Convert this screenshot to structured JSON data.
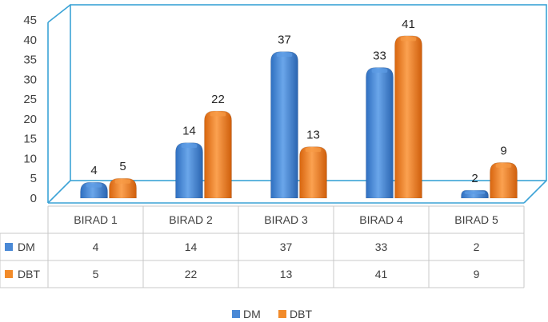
{
  "chart_data": {
    "type": "bar",
    "title": "",
    "xlabel": "",
    "ylabel": "",
    "categories": [
      "BIRAD 1",
      "BIRAD 2",
      "BIRAD 3",
      "BIRAD 4",
      "BIRAD 5"
    ],
    "series": [
      {
        "name": "DM",
        "values": [
          4,
          14,
          37,
          33,
          2
        ],
        "color": "#4a89d6"
      },
      {
        "name": "DBT",
        "values": [
          5,
          22,
          13,
          41,
          9
        ],
        "color": "#f28b2a"
      }
    ],
    "ylim": [
      0,
      45
    ],
    "yticks": [
      0,
      5,
      10,
      15,
      20,
      25,
      30,
      35,
      40,
      45
    ],
    "grid": false,
    "data_labels": true,
    "data_table": true,
    "legend_position": "bottom",
    "frame_color": "#3ba3d6"
  }
}
